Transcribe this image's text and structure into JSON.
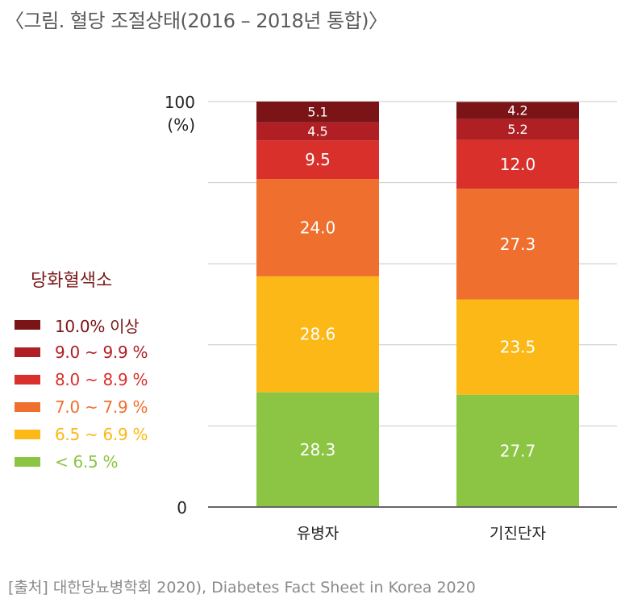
{
  "title": "〈그림. 혈당 조절상태(2016 – 2018년 통합)〉",
  "legend": {
    "title": "당화혈색소",
    "items": [
      {
        "label": "10.0% 이상",
        "color": "#7a1416"
      },
      {
        "label": "9.0 ~ 9.9 %",
        "color": "#b01f24"
      },
      {
        "label": "8.0 ~ 8.9 %",
        "color": "#d9302b"
      },
      {
        "label": "7.0 ~ 7.9 %",
        "color": "#ef6f2e"
      },
      {
        "label": "6.5 ~ 6.9 %",
        "color": "#fbb816"
      },
      {
        "label": "< 6.5 %",
        "color": "#8cc443"
      }
    ]
  },
  "source": "[출처] 대한당뇨병학회 2020), Diabetes Fact Sheet in Korea 2020",
  "chart_data": {
    "type": "bar",
    "stacked": true,
    "categories": [
      "유병자",
      "기진단자"
    ],
    "series": [
      {
        "name": "< 6.5 %",
        "values": [
          28.3,
          27.7
        ],
        "labels": [
          "28.3",
          "27.7"
        ],
        "color": "#8cc443"
      },
      {
        "name": "6.5 ~ 6.9 %",
        "values": [
          28.6,
          23.5
        ],
        "labels": [
          "28.6",
          "23.5"
        ],
        "color": "#fbb816"
      },
      {
        "name": "7.0 ~ 7.9 %",
        "values": [
          24.0,
          27.3
        ],
        "labels": [
          "24.0",
          "27.3"
        ],
        "color": "#ef6f2e"
      },
      {
        "name": "8.0 ~ 8.9 %",
        "values": [
          9.5,
          12.0
        ],
        "labels": [
          "9.5",
          "12.0"
        ],
        "color": "#d9302b"
      },
      {
        "name": "9.0 ~ 9.9 %",
        "values": [
          4.5,
          5.2
        ],
        "labels": [
          "4.5",
          "5.2"
        ],
        "color": "#b01f24"
      },
      {
        "name": "10.0% 이상",
        "values": [
          5.1,
          4.2
        ],
        "labels": [
          "5.1",
          "4.2"
        ],
        "color": "#7a1416"
      }
    ],
    "ylim": [
      0,
      100
    ],
    "y_tick_labels": {
      "top": "100",
      "unit": "(%)",
      "bottom": "0"
    },
    "gridlines": [
      20,
      40,
      60,
      80,
      100
    ],
    "legend_position": "left"
  }
}
